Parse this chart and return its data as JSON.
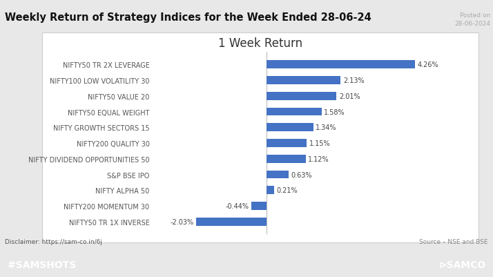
{
  "title": "Weekly Return of Strategy Indices for the Week Ended 28-06-24",
  "posted_on_line1": "Posted on",
  "posted_on_line2": "28-06-2024",
  "chart_title": "1 Week Return",
  "categories": [
    "NIFTY50 TR 2X LEVERAGE",
    "NIFTY100 LOW VOLATILITY 30",
    "NIFTY50 VALUE 20",
    "NIFTY50 EQUAL WEIGHT",
    "NIFTY GROWTH SECTORS 15",
    "NIFTY200 QUALITY 30",
    "NIFTY DIVIDEND OPPORTUNITIES 50",
    "S&P BSE IPO",
    "NIFTY ALPHA 50",
    "NIFTY200 MOMENTUM 30",
    "NIFTY50 TR 1X INVERSE"
  ],
  "values": [
    4.26,
    2.13,
    2.01,
    1.58,
    1.34,
    1.15,
    1.12,
    0.63,
    0.21,
    -0.44,
    -2.03
  ],
  "bar_color": "#4472C4",
  "outer_bg": "#e8e8e8",
  "chart_panel_bg": "#ffffff",
  "footer_bg": "#e87050",
  "footer_text_color": "#ffffff",
  "title_color": "#111111",
  "label_color": "#555555",
  "value_color": "#444444",
  "posted_color": "#aaaaaa",
  "disclaimer_text": "Disclaimer: https://sam-co.in/6j",
  "source_text": "Source – NSE and BSE",
  "samshots_text": "#SAMSHOTS",
  "samco_logo": "⊳SAMCO",
  "title_fontsize": 10.5,
  "chart_title_fontsize": 12,
  "label_fontsize": 7.0,
  "value_fontsize": 7.0,
  "posted_fontsize": 6.5,
  "footer_fontsize": 10,
  "disclaimer_fontsize": 6.5,
  "xlim": [
    -3.2,
    5.8
  ],
  "bar_height": 0.52
}
